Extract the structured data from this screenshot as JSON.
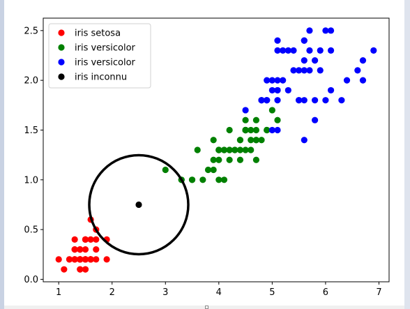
{
  "chart_data": {
    "type": "scatter",
    "xlim": [
      0.71,
      7.19
    ],
    "ylim": [
      -0.025,
      2.625
    ],
    "x_ticks": [
      "1",
      "2",
      "3",
      "4",
      "5",
      "6",
      "7"
    ],
    "y_ticks": [
      "0.0",
      "0.5",
      "1.0",
      "1.5",
      "2.0",
      "2.5"
    ],
    "grid": false,
    "legend_position": "top-left",
    "series": [
      {
        "name": "iris setosa",
        "color": "#ff0000",
        "points": [
          [
            1.4,
            0.2
          ],
          [
            1.4,
            0.2
          ],
          [
            1.3,
            0.2
          ],
          [
            1.5,
            0.2
          ],
          [
            1.4,
            0.2
          ],
          [
            1.7,
            0.4
          ],
          [
            1.4,
            0.3
          ],
          [
            1.5,
            0.2
          ],
          [
            1.4,
            0.2
          ],
          [
            1.5,
            0.1
          ],
          [
            1.5,
            0.2
          ],
          [
            1.6,
            0.2
          ],
          [
            1.4,
            0.1
          ],
          [
            1.1,
            0.1
          ],
          [
            1.2,
            0.2
          ],
          [
            1.5,
            0.4
          ],
          [
            1.3,
            0.4
          ],
          [
            1.4,
            0.3
          ],
          [
            1.7,
            0.3
          ],
          [
            1.5,
            0.3
          ],
          [
            1.7,
            0.2
          ],
          [
            1.5,
            0.4
          ],
          [
            1.0,
            0.2
          ],
          [
            1.7,
            0.5
          ],
          [
            1.9,
            0.2
          ],
          [
            1.6,
            0.2
          ],
          [
            1.6,
            0.4
          ],
          [
            1.5,
            0.2
          ],
          [
            1.4,
            0.2
          ],
          [
            1.6,
            0.2
          ],
          [
            1.6,
            0.2
          ],
          [
            1.5,
            0.4
          ],
          [
            1.5,
            0.1
          ],
          [
            1.4,
            0.2
          ],
          [
            1.5,
            0.2
          ],
          [
            1.2,
            0.2
          ],
          [
            1.3,
            0.2
          ],
          [
            1.4,
            0.1
          ],
          [
            1.3,
            0.2
          ],
          [
            1.5,
            0.2
          ],
          [
            1.3,
            0.3
          ],
          [
            1.3,
            0.3
          ],
          [
            1.3,
            0.2
          ],
          [
            1.6,
            0.6
          ],
          [
            1.9,
            0.4
          ],
          [
            1.4,
            0.3
          ],
          [
            1.6,
            0.2
          ],
          [
            1.4,
            0.2
          ],
          [
            1.5,
            0.2
          ],
          [
            1.4,
            0.2
          ]
        ]
      },
      {
        "name": "iris versicolor",
        "color": "#008000",
        "points": [
          [
            4.7,
            1.4
          ],
          [
            4.5,
            1.5
          ],
          [
            4.9,
            1.5
          ],
          [
            4.0,
            1.3
          ],
          [
            4.6,
            1.5
          ],
          [
            4.5,
            1.3
          ],
          [
            4.7,
            1.6
          ],
          [
            3.3,
            1.0
          ],
          [
            4.6,
            1.3
          ],
          [
            3.9,
            1.4
          ],
          [
            3.5,
            1.0
          ],
          [
            4.2,
            1.5
          ],
          [
            4.0,
            1.0
          ],
          [
            4.7,
            1.4
          ],
          [
            3.6,
            1.3
          ],
          [
            4.4,
            1.4
          ],
          [
            4.5,
            1.5
          ],
          [
            4.1,
            1.0
          ],
          [
            4.5,
            1.5
          ],
          [
            3.9,
            1.1
          ],
          [
            4.8,
            1.8
          ],
          [
            4.0,
            1.3
          ],
          [
            4.9,
            1.5
          ],
          [
            4.7,
            1.2
          ],
          [
            4.3,
            1.3
          ],
          [
            4.4,
            1.4
          ],
          [
            4.8,
            1.4
          ],
          [
            5.0,
            1.7
          ],
          [
            4.5,
            1.5
          ],
          [
            3.5,
            1.0
          ],
          [
            3.8,
            1.1
          ],
          [
            3.7,
            1.0
          ],
          [
            3.9,
            1.2
          ],
          [
            5.1,
            1.6
          ],
          [
            4.5,
            1.5
          ],
          [
            4.5,
            1.6
          ],
          [
            4.7,
            1.5
          ],
          [
            4.4,
            1.3
          ],
          [
            4.1,
            1.3
          ],
          [
            4.0,
            1.3
          ],
          [
            4.4,
            1.2
          ],
          [
            4.6,
            1.4
          ],
          [
            4.0,
            1.2
          ],
          [
            3.3,
            1.0
          ],
          [
            4.2,
            1.3
          ],
          [
            4.2,
            1.2
          ],
          [
            4.2,
            1.3
          ],
          [
            4.3,
            1.3
          ],
          [
            3.0,
            1.1
          ],
          [
            4.1,
            1.3
          ]
        ]
      },
      {
        "name": "iris versicolor",
        "color": "#0000ff",
        "points": [
          [
            6.0,
            2.5
          ],
          [
            5.1,
            1.9
          ],
          [
            5.9,
            2.1
          ],
          [
            5.6,
            1.8
          ],
          [
            5.8,
            2.2
          ],
          [
            6.6,
            2.1
          ],
          [
            4.5,
            1.7
          ],
          [
            6.3,
            1.8
          ],
          [
            5.8,
            1.8
          ],
          [
            6.1,
            2.5
          ],
          [
            5.1,
            2.0
          ],
          [
            5.3,
            1.9
          ],
          [
            5.5,
            2.1
          ],
          [
            5.0,
            2.0
          ],
          [
            5.1,
            2.4
          ],
          [
            5.3,
            2.3
          ],
          [
            5.5,
            1.8
          ],
          [
            6.7,
            2.2
          ],
          [
            6.9,
            2.3
          ],
          [
            5.0,
            1.5
          ],
          [
            5.7,
            2.3
          ],
          [
            4.9,
            2.0
          ],
          [
            6.7,
            2.0
          ],
          [
            4.9,
            1.8
          ],
          [
            5.7,
            2.1
          ],
          [
            6.0,
            1.8
          ],
          [
            4.8,
            1.8
          ],
          [
            4.9,
            1.8
          ],
          [
            5.6,
            2.1
          ],
          [
            5.8,
            1.6
          ],
          [
            6.1,
            1.9
          ],
          [
            6.4,
            2.0
          ],
          [
            5.6,
            2.2
          ],
          [
            5.1,
            1.5
          ],
          [
            5.6,
            1.4
          ],
          [
            6.1,
            2.3
          ],
          [
            5.6,
            2.4
          ],
          [
            5.5,
            1.8
          ],
          [
            4.8,
            1.8
          ],
          [
            5.4,
            2.1
          ],
          [
            5.6,
            2.4
          ],
          [
            5.1,
            2.3
          ],
          [
            5.1,
            1.9
          ],
          [
            5.9,
            2.3
          ],
          [
            5.7,
            2.5
          ],
          [
            5.2,
            2.3
          ],
          [
            5.0,
            1.9
          ],
          [
            5.2,
            2.0
          ],
          [
            5.4,
            2.3
          ],
          [
            5.1,
            1.8
          ]
        ]
      },
      {
        "name": "iris inconnu",
        "color": "#000000",
        "points": [
          [
            2.5,
            0.75
          ]
        ]
      }
    ],
    "circle": {
      "center": [
        2.5,
        0.75
      ],
      "color": "#000000"
    }
  }
}
